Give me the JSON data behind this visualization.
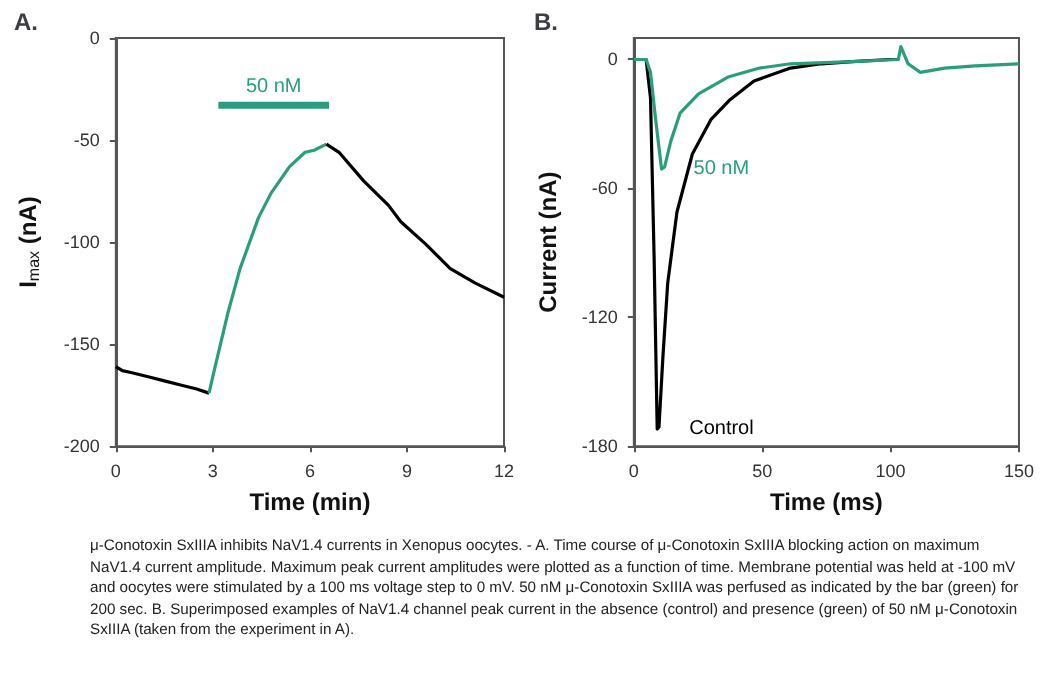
{
  "chart_data": [
    {
      "type": "line",
      "title": "A.",
      "xlabel": "Time (min)",
      "ylabel": "I$_{max}$ (nA)",
      "xlim": [
        0,
        12
      ],
      "xticks": [
        0,
        3,
        6,
        9,
        12
      ],
      "ylim": [
        -200,
        0
      ],
      "yticks": [
        -200,
        -150,
        -100,
        -50,
        0
      ],
      "grid": false,
      "series": [
        {
          "color": "#000000",
          "x": [
            0,
            0.2,
            0.5,
            1.0,
            1.5,
            2.0,
            2.5,
            2.88
          ],
          "values": [
            -161,
            -163,
            -164,
            -166,
            -168,
            -170,
            -172,
            -174
          ]
        },
        {
          "color": "#2a9d7c",
          "x": [
            2.88,
            3.07,
            3.46,
            3.84,
            4.41,
            4.8,
            5.37,
            5.85,
            6.13,
            6.51
          ],
          "values": [
            -174,
            -161,
            -135,
            -113,
            -88,
            -76,
            -63,
            -56,
            -55,
            -52
          ]
        },
        {
          "color": "#000000",
          "x": [
            6.51,
            6.9,
            7.66,
            8.43,
            8.81,
            9.58,
            10.34,
            11.1,
            12
          ],
          "values": [
            -52,
            -56,
            -70,
            -82,
            -90,
            -101,
            -113,
            -120,
            -127
          ]
        },
        {
          "name": "50 nM",
          "color": "#2a9d7c",
          "x": [
            3.17,
            6.59
          ],
          "values": [
            -33,
            -33
          ]
        }
      ],
      "annotations": [
        "μ-Conotoxin SxIIIA inhibits NaV1.4 currents in Xenopus oocytes. - A. Time course of μ-Conotoxin SxIIIA blocking action on maximum NaV1.4 current amplitude. Maximum peak current amplitudes were plotted as a function of time. Membrane potential was held at -100 mV and oocytes were stimulated by a 100 ms voltage step to 0 mV. 50 nM μ-Conotoxin SxIIIA was perfused as indicated by the bar (green) for 200 sec. B. Superimposed examples of NaV1.4 channel peak current in the absence (control) and presence (green) of 50 nM μ-Conotoxin SxIIIA (taken from the experiment in A)."
      ]
    },
    {
      "type": "line",
      "title": "B.",
      "xlabel": "Time (ms)",
      "ylabel": "Current (nA)",
      "xlim": [
        0,
        150
      ],
      "xticks": [
        0,
        50,
        100,
        150
      ],
      "ylim": [
        -180,
        10
      ],
      "yticks": [
        -180,
        -120,
        -60,
        0
      ],
      "grid": false,
      "series": [
        {
          "name": "Control",
          "color": "#000000",
          "x": [
            0,
            4.8,
            6.5,
            7.9,
            9.1,
            9.8,
            11.3,
            13.2,
            16.8,
            22.8,
            30,
            37.2,
            46.8,
            61,
            73,
            85,
            99.6,
            103
          ],
          "values": [
            0,
            0,
            -18,
            -92,
            -172,
            -171,
            -139,
            -104,
            -71,
            -44,
            -28,
            -19,
            -10,
            -4,
            -2,
            -1,
            0,
            0
          ]
        },
        {
          "name": "50 nM",
          "color": "#2a9d7c",
          "x": [
            0,
            4.8,
            6.5,
            8.4,
            10.8,
            12,
            14.4,
            18,
            25.2,
            37,
            49,
            61,
            85,
            103,
            104,
            106.8,
            111.6,
            121,
            133,
            150
          ],
          "values": [
            0,
            0,
            -6,
            -27,
            -51,
            -50,
            -38,
            -25,
            -16,
            -8,
            -4,
            -2,
            -1,
            0,
            6,
            -2,
            -6,
            -4,
            -3,
            -2
          ]
        }
      ]
    }
  ]
}
